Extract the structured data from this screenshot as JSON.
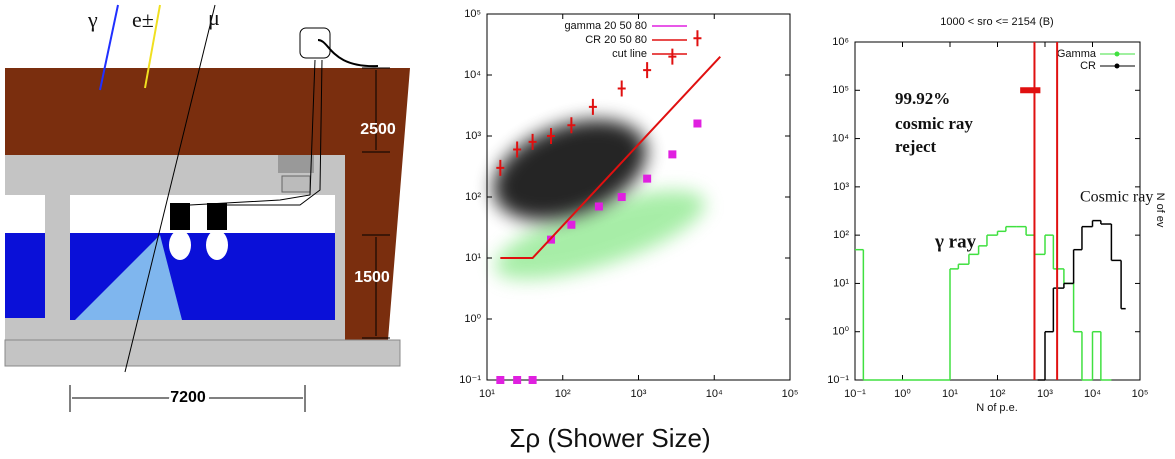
{
  "diagram": {
    "labels": [
      "γ",
      "e±",
      "μ",
      "2500",
      "1500",
      "7200"
    ]
  },
  "chart_data": [
    {
      "type": "scatter",
      "xlabel": "Σρ  (Shower Size)",
      "log_x": true,
      "log_y": true,
      "xlim": [
        10,
        100000
      ],
      "ylim": [
        0.1,
        100000
      ],
      "xticks": [
        {
          "value": 10,
          "label": "10¹"
        },
        {
          "value": 100,
          "label": "10²"
        },
        {
          "value": 1000,
          "label": "10³"
        },
        {
          "value": 10000,
          "label": "10⁴"
        },
        {
          "value": 100000,
          "label": "10⁵"
        }
      ],
      "yticks": [
        {
          "value": 0.1,
          "label": "10⁻¹"
        },
        {
          "value": 1,
          "label": "10⁰"
        },
        {
          "value": 10,
          "label": "10¹"
        },
        {
          "value": 100,
          "label": "10²"
        },
        {
          "value": 1000,
          "label": "10³"
        },
        {
          "value": 10000,
          "label": "10⁴"
        },
        {
          "value": 100000,
          "label": "10⁵"
        }
      ],
      "legend": "upper left",
      "series": [
        {
          "name": "gamma 20 50 80",
          "color": "#e020e0",
          "x": [
            15,
            25,
            40,
            70,
            130,
            300,
            600,
            1300,
            2800,
            6000
          ],
          "values": [
            0.1,
            0.1,
            0.1,
            20,
            35,
            70,
            100,
            200,
            500,
            1600
          ]
        },
        {
          "name": "CR 20 50 80",
          "color": "#e01010",
          "x": [
            15,
            25,
            40,
            70,
            130,
            250,
            600,
            1300,
            2800,
            6000
          ],
          "values": [
            300,
            600,
            800,
            1000,
            1500,
            3000,
            6000,
            12000,
            20000,
            40000
          ]
        },
        {
          "name": "cut line",
          "color": "#e01010",
          "type": "line",
          "x": [
            15,
            40,
            12000
          ],
          "values": [
            10,
            10,
            20000
          ]
        }
      ]
    },
    {
      "type": "histogram",
      "title": "1000 < sro <= 2154 (B)",
      "xlabel": "N of p.e.",
      "ylabel": "N of ev",
      "log_x": true,
      "log_y": true,
      "xlim": [
        0.1,
        100000
      ],
      "ylim": [
        0.1,
        1000000
      ],
      "xticks": [
        {
          "value": 0.1,
          "label": "10⁻¹"
        },
        {
          "value": 1,
          "label": "10⁰"
        },
        {
          "value": 10,
          "label": "10¹"
        },
        {
          "value": 100,
          "label": "10²"
        },
        {
          "value": 1000,
          "label": "10³"
        },
        {
          "value": 10000,
          "label": "10⁴"
        },
        {
          "value": 100000,
          "label": "10⁵"
        }
      ],
      "yticks": [
        {
          "value": 0.1,
          "label": "10⁻¹"
        },
        {
          "value": 1,
          "label": "10⁰"
        },
        {
          "value": 10,
          "label": "10¹"
        },
        {
          "value": 100,
          "label": "10²"
        },
        {
          "value": 1000,
          "label": "10³"
        },
        {
          "value": 10000,
          "label": "10⁴"
        },
        {
          "value": 100000,
          "label": "10⁵"
        },
        {
          "value": 1000000,
          "label": "10⁶"
        }
      ],
      "legend": "upper right",
      "series": [
        {
          "name": "Gamma",
          "color": "#40e040",
          "bins": [
            0.1,
            0.15,
            10,
            15,
            25,
            40,
            60,
            100,
            150,
            250,
            400,
            600,
            1000,
            1500,
            2500,
            4000,
            6000,
            10000,
            15000,
            25000
          ],
          "values": [
            50,
            0.1,
            20,
            25,
            40,
            60,
            100,
            120,
            150,
            150,
            100,
            40,
            100,
            20,
            10,
            1,
            0.1,
            1,
            0.1
          ]
        },
        {
          "name": "CR",
          "color": "#000000",
          "bins": [
            700,
            1000,
            1500,
            2500,
            4000,
            6000,
            10000,
            15000,
            25000,
            40000,
            50000
          ],
          "values": [
            0.1,
            1,
            8,
            10,
            50,
            150,
            200,
            170,
            30,
            3
          ]
        }
      ],
      "cut_lines": {
        "color": "#e01010",
        "x": [
          600,
          1800
        ]
      },
      "reject_bar": {
        "color": "#e01010",
        "x": [
          300,
          800
        ],
        "y": 100000
      },
      "annotations": [
        "99.92%",
        "cosmic ray",
        "reject",
        "γ ray",
        "Cosmic ray"
      ]
    }
  ]
}
